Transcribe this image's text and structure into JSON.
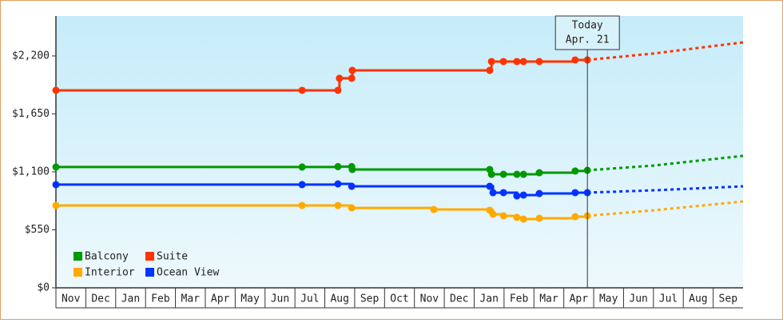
{
  "chart_data": {
    "type": "step-line",
    "categories": [
      "Nov",
      "Dec",
      "Jan",
      "Feb",
      "Mar",
      "Apr",
      "May",
      "Jun",
      "Jul",
      "Aug",
      "Sep",
      "Oct",
      "Nov",
      "Dec",
      "Jan",
      "Feb",
      "Mar",
      "Apr",
      "May",
      "Jun",
      "Jul",
      "Aug",
      "Sep"
    ],
    "xlim": [
      0,
      23
    ],
    "ylim": [
      0,
      2579
    ],
    "yticks": [
      {
        "value": 0,
        "label": "$0"
      },
      {
        "value": 550,
        "label": "$550"
      },
      {
        "value": 1100,
        "label": "$1,100"
      },
      {
        "value": 1650,
        "label": "$1,650"
      },
      {
        "value": 2200,
        "label": "$2,200"
      }
    ],
    "today": {
      "x": 17.79,
      "label": "Today",
      "date": "Apr. 21"
    },
    "legend": "bottom-left",
    "series": [
      {
        "name": "Balcony",
        "color": "#009900",
        "x": [
          0,
          8.24,
          9.44,
          9.9,
          9.92,
          14.52,
          14.58,
          14.98,
          15.43,
          15.65,
          16.18,
          17.38,
          17.79
        ],
        "values": [
          1146,
          1146,
          1150,
          1150,
          1123,
          1123,
          1077,
          1077,
          1077,
          1077,
          1092,
          1108,
          1115
        ],
        "forecast_x": [
          17.79,
          20,
          23
        ],
        "forecast_values": [
          1115,
          1160,
          1252
        ]
      },
      {
        "name": "Suite",
        "color": "#ff3300",
        "x": [
          0,
          8.24,
          9.44,
          9.49,
          9.9,
          9.92,
          14.52,
          14.58,
          14.98,
          15.43,
          15.65,
          16.18,
          17.38,
          17.79
        ],
        "values": [
          1874,
          1874,
          1874,
          1988,
          1988,
          2063,
          2063,
          2147,
          2147,
          2147,
          2147,
          2147,
          2162,
          2162
        ],
        "forecast_x": [
          17.79,
          20,
          23
        ],
        "forecast_values": [
          2162,
          2223,
          2329
        ]
      },
      {
        "name": "Interior",
        "color": "#ffaa00",
        "x": [
          0,
          8.24,
          9.44,
          9.9,
          12.65,
          14.52,
          14.63,
          14.98,
          15.43,
          15.65,
          16.18,
          17.38,
          17.79
        ],
        "values": [
          781,
          781,
          781,
          758,
          743,
          736,
          698,
          683,
          668,
          652,
          660,
          675,
          683
        ],
        "forecast_x": [
          17.79,
          20,
          23
        ],
        "forecast_values": [
          683,
          735,
          819
        ]
      },
      {
        "name": "Ocean View",
        "color": "#0033ff",
        "x": [
          0,
          8.24,
          9.44,
          9.9,
          14.52,
          14.63,
          14.98,
          15.43,
          15.65,
          16.18,
          17.38,
          17.79
        ],
        "values": [
          979,
          979,
          986,
          963,
          963,
          903,
          903,
          872,
          880,
          895,
          903,
          903
        ],
        "forecast_x": [
          17.79,
          20,
          23
        ],
        "forecast_values": [
          903,
          925,
          963
        ]
      }
    ]
  }
}
